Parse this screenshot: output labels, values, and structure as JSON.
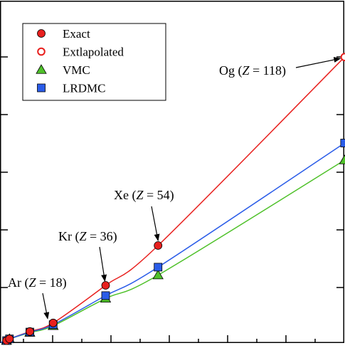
{
  "chart_data": {
    "type": "line",
    "title": "",
    "xlabel": "",
    "ylabel": "",
    "xlim": [
      0,
      120
    ],
    "ylim": [
      0,
      5.9
    ],
    "grid": false,
    "legend_position": "top-left",
    "series": [
      {
        "name": "Exact",
        "marker": "circle-filled",
        "color": "#e8201e",
        "x": [
          2,
          3,
          10,
          18,
          36,
          54
        ],
        "y": [
          0.03,
          0.06,
          0.19,
          0.34,
          1.0,
          1.7
        ]
      },
      {
        "name": "Extlapolated",
        "marker": "circle-open",
        "color": "#e8201e",
        "x": [
          118
        ],
        "y": [
          5.01
        ]
      },
      {
        "name": "VMC",
        "marker": "triangle",
        "color": "#4fc12a",
        "x": [
          2,
          3,
          10,
          18,
          36,
          54,
          118
        ],
        "y": [
          0.03,
          0.06,
          0.17,
          0.29,
          0.77,
          1.18,
          3.2
        ]
      },
      {
        "name": "LRDMC",
        "marker": "square",
        "color": "#2a5ce8",
        "x": [
          2,
          3,
          10,
          18,
          36,
          54,
          118
        ],
        "y": [
          0.03,
          0.06,
          0.18,
          0.31,
          0.82,
          1.32,
          3.5
        ]
      }
    ],
    "annotations": [
      {
        "id": "ar",
        "prefix": "Ar (",
        "var": "Z",
        "suffix": " = 18)",
        "x": 18,
        "y": 0.34
      },
      {
        "id": "kr",
        "prefix": "Kr (",
        "var": "Z",
        "suffix": " = 36)",
        "x": 36,
        "y": 1.0
      },
      {
        "id": "xe",
        "prefix": "Xe (",
        "var": "Z",
        "suffix": " = 54)",
        "x": 54,
        "y": 1.7
      },
      {
        "id": "og",
        "prefix": "Og (",
        "var": "Z",
        "suffix": " = 118)",
        "x": 118,
        "y": 5.01
      }
    ]
  }
}
